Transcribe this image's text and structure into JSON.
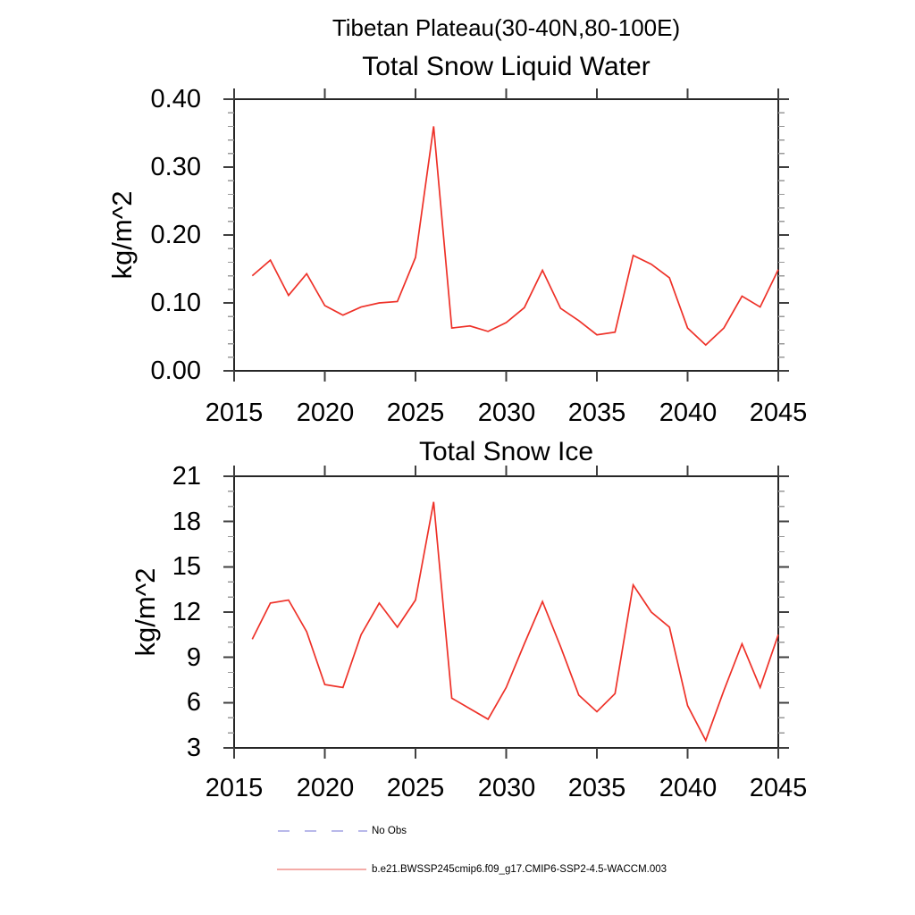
{
  "header": {
    "title": "Tibetan Plateau(30-40N,80-100E)"
  },
  "chart_data": [
    {
      "type": "line",
      "title": "Total Snow Liquid Water",
      "ylabel": "kg/m^2",
      "xlim": [
        2015,
        2045
      ],
      "ylim": [
        0.0,
        0.4
      ],
      "grid": false,
      "xticks": {
        "labels": [
          "2015",
          "2020",
          "2025",
          "2030",
          "2035",
          "2040",
          "2045"
        ],
        "values": [
          2015,
          2020,
          2025,
          2030,
          2035,
          2040,
          2045
        ]
      },
      "yticks": {
        "labels": [
          "0.00",
          "0.10",
          "0.20",
          "0.30",
          "0.40"
        ],
        "values": [
          0.0,
          0.1,
          0.2,
          0.3,
          0.4
        ],
        "minor_step": 0.02
      },
      "x": [
        2016,
        2017,
        2018,
        2019,
        2020,
        2021,
        2022,
        2023,
        2024,
        2025,
        2026,
        2027,
        2028,
        2029,
        2030,
        2031,
        2032,
        2033,
        2034,
        2035,
        2036,
        2037,
        2038,
        2039,
        2040,
        2041,
        2042,
        2043,
        2044,
        2045
      ],
      "series": [
        {
          "name": "b.e21.BWSSP245cmip6.f09_g17.CMIP6-SSP2-4.5-WACCM.003",
          "color": "#ee3128",
          "values": [
            0.14,
            0.163,
            0.111,
            0.143,
            0.096,
            0.082,
            0.094,
            0.1,
            0.102,
            0.167,
            0.36,
            0.063,
            0.066,
            0.058,
            0.071,
            0.093,
            0.148,
            0.092,
            0.074,
            0.053,
            0.057,
            0.17,
            0.157,
            0.137,
            0.063,
            0.038,
            0.063,
            0.11,
            0.094,
            0.149
          ]
        }
      ]
    },
    {
      "type": "line",
      "title": "Total Snow Ice",
      "ylabel": "kg/m^2",
      "xlim": [
        2015,
        2045
      ],
      "ylim": [
        3,
        21
      ],
      "grid": false,
      "xticks": {
        "labels": [
          "2015",
          "2020",
          "2025",
          "2030",
          "2035",
          "2040",
          "2045"
        ],
        "values": [
          2015,
          2020,
          2025,
          2030,
          2035,
          2040,
          2045
        ]
      },
      "yticks": {
        "labels": [
          "3",
          "6",
          "9",
          "12",
          "15",
          "18",
          "21"
        ],
        "values": [
          3,
          6,
          9,
          12,
          15,
          18,
          21
        ],
        "minor_step": 1
      },
      "x": [
        2016,
        2017,
        2018,
        2019,
        2020,
        2021,
        2022,
        2023,
        2024,
        2025,
        2026,
        2027,
        2028,
        2029,
        2030,
        2031,
        2032,
        2033,
        2034,
        2035,
        2036,
        2037,
        2038,
        2039,
        2040,
        2041,
        2042,
        2043,
        2044,
        2045
      ],
      "series": [
        {
          "name": "b.e21.BWSSP245cmip6.f09_g17.CMIP6-SSP2-4.5-WACCM.003",
          "color": "#ee3128",
          "values": [
            10.2,
            12.6,
            12.8,
            10.7,
            7.2,
            7.0,
            10.5,
            12.6,
            11.0,
            12.8,
            19.3,
            6.3,
            5.6,
            4.9,
            7.0,
            9.9,
            12.7,
            9.7,
            6.5,
            5.4,
            6.6,
            13.8,
            12.0,
            11.0,
            5.8,
            3.5,
            6.8,
            9.9,
            7.0,
            10.5
          ]
        }
      ]
    }
  ],
  "legend": {
    "items": [
      {
        "label": "No Obs",
        "style": "dashed",
        "color": "#7070d4"
      },
      {
        "label": "b.e21.BWSSP245cmip6.f09_g17.CMIP6-SSP2-4.5-WACCM.003",
        "style": "solid",
        "color": "#ea5a50"
      }
    ]
  },
  "colors": {
    "series_red": "#ee3128",
    "no_obs_blue": "#7070d4",
    "axis_frame": "#262626",
    "major_tick": "#3f3f3f",
    "minor_tick": "#999999"
  }
}
